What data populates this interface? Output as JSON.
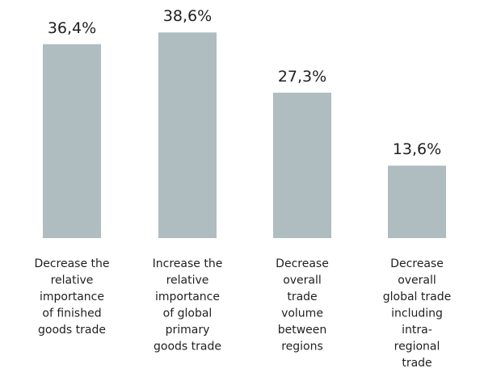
{
  "colors": {
    "bar": "#afbcc0",
    "text": "#1f1f1f",
    "background": "#ffffff"
  },
  "chart_data": {
    "type": "bar",
    "title": "",
    "xlabel": "",
    "ylabel": "",
    "grid": false,
    "legend": "none",
    "ylim": [
      0,
      40
    ],
    "categories": [
      "Decrease the relative importance of finished goods trade",
      "Increase the relative importance of global primary goods trade",
      "Decrease overall trade volume between regions",
      "Decrease overall global trade including intra-regional trade"
    ],
    "category_lines": [
      [
        "Decrease the",
        "relative",
        "importance",
        "of finished",
        "goods trade"
      ],
      [
        "Increase the",
        "relative",
        "importance",
        "of global",
        "primary",
        "goods trade"
      ],
      [
        "Decrease",
        "overall",
        "trade",
        "volume",
        "between",
        "regions"
      ],
      [
        "Decrease",
        "overall",
        "global trade",
        "including",
        "intra-",
        "regional",
        "trade"
      ]
    ],
    "values": [
      36.4,
      38.6,
      27.3,
      13.6
    ],
    "value_labels": [
      "36,4%",
      "38,6%",
      "27,3%",
      "13,6%"
    ]
  }
}
